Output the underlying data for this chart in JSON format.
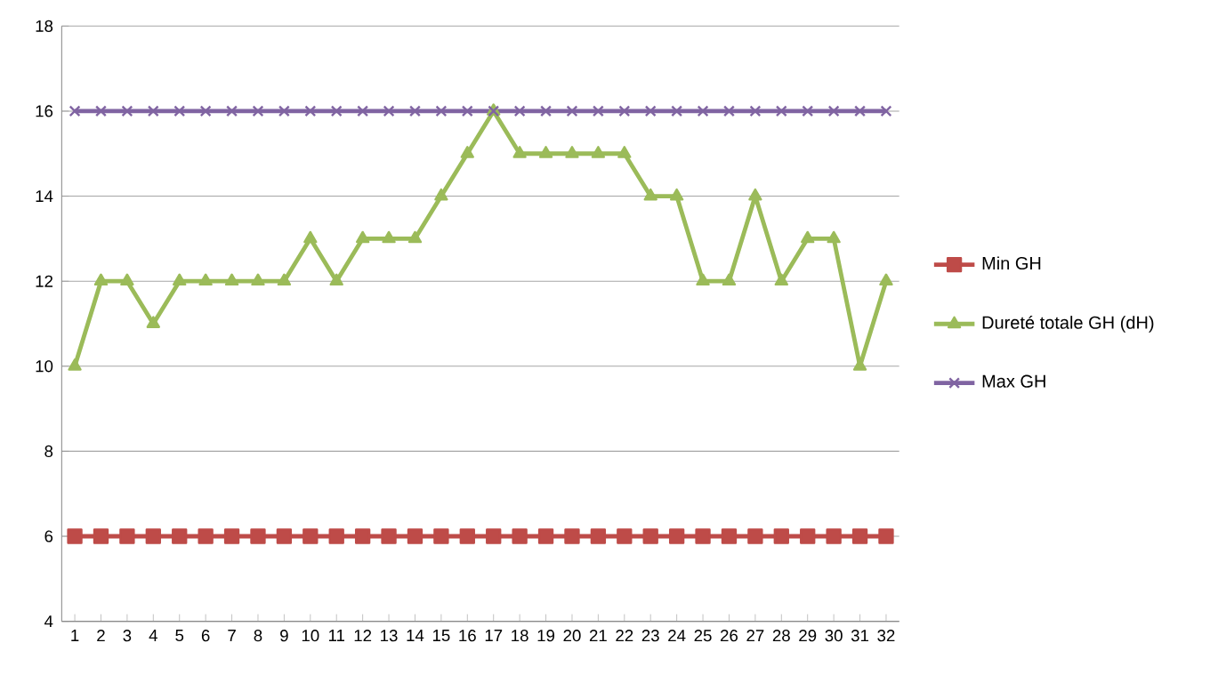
{
  "chart_data": {
    "type": "line",
    "categories": [
      "1",
      "2",
      "3",
      "4",
      "5",
      "6",
      "7",
      "8",
      "9",
      "10",
      "11",
      "12",
      "13",
      "14",
      "15",
      "16",
      "17",
      "18",
      "19",
      "20",
      "21",
      "22",
      "23",
      "24",
      "25",
      "26",
      "27",
      "28",
      "29",
      "30",
      "31",
      "32"
    ],
    "series": [
      {
        "name": "Min GH",
        "color": "#be4b48",
        "marker": "square",
        "values": [
          6,
          6,
          6,
          6,
          6,
          6,
          6,
          6,
          6,
          6,
          6,
          6,
          6,
          6,
          6,
          6,
          6,
          6,
          6,
          6,
          6,
          6,
          6,
          6,
          6,
          6,
          6,
          6,
          6,
          6,
          6,
          6
        ]
      },
      {
        "name": "Dureté totale  GH (dH)",
        "color": "#9bbb59",
        "marker": "triangle",
        "values": [
          10,
          12,
          12,
          11,
          12,
          12,
          12,
          12,
          12,
          13,
          12,
          13,
          13,
          13,
          14,
          15,
          16,
          15,
          15,
          15,
          15,
          15,
          14,
          14,
          12,
          12,
          14,
          12,
          13,
          13,
          10,
          12
        ]
      },
      {
        "name": "Max GH",
        "color": "#8064a2",
        "marker": "cross",
        "values": [
          16,
          16,
          16,
          16,
          16,
          16,
          16,
          16,
          16,
          16,
          16,
          16,
          16,
          16,
          16,
          16,
          16,
          16,
          16,
          16,
          16,
          16,
          16,
          16,
          16,
          16,
          16,
          16,
          16,
          16,
          16,
          16
        ]
      }
    ],
    "ylim": [
      4,
      18
    ],
    "yticks": [
      4,
      6,
      8,
      10,
      12,
      14,
      16,
      18
    ],
    "grid": "y",
    "legend": "right",
    "line_style": "solid"
  }
}
